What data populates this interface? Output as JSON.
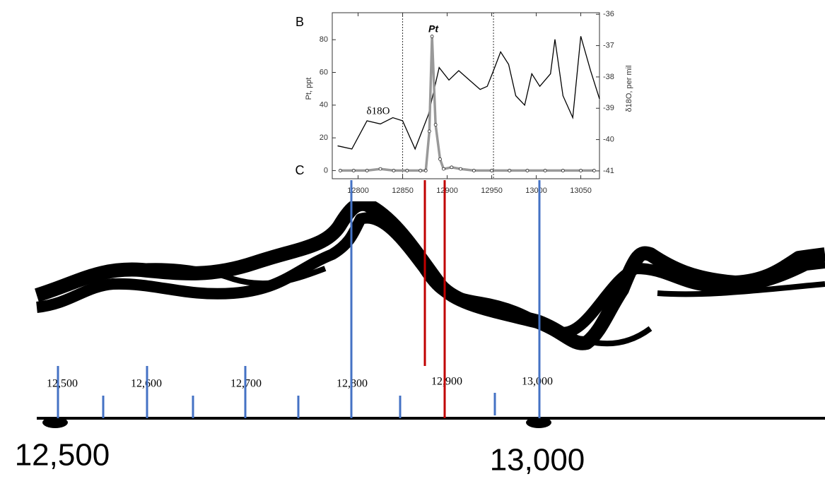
{
  "chart_data": {
    "type": "line",
    "panel_labels": [
      "B",
      "C"
    ],
    "annotations": [
      "Pt",
      "δ18O"
    ],
    "ylabel": "Pt, ppt",
    "y2label": "δ18O, per mil",
    "xlim": [
      12771,
      13071
    ],
    "xticks": [
      12800,
      12850,
      12900,
      12950,
      13000,
      13050
    ],
    "ylim": [
      -5,
      96.5
    ],
    "yticks": [
      0,
      20,
      40,
      60,
      80
    ],
    "y2lim": [
      -41.25,
      -35.95
    ],
    "y2ticks": [
      -36,
      -37,
      -38,
      -39,
      -40,
      -41
    ],
    "reference_lines": [
      12850,
      12952
    ],
    "series": [
      {
        "name": "δ18O",
        "color": "#000000",
        "axis": "y2",
        "x": [
          12777,
          12793,
          12810,
          12825,
          12839,
          12850,
          12864,
          12879,
          12891,
          12902,
          12913,
          12925,
          12937,
          12945,
          12952,
          12960,
          12969,
          12977,
          12987,
          12995,
          13004,
          13016,
          13021,
          13030,
          13041,
          13050,
          13061,
          13071
        ],
        "values": [
          -40.2,
          -40.3,
          -39.4,
          -39.5,
          -39.3,
          -39.4,
          -40.3,
          -39.2,
          -37.7,
          -38.1,
          -37.8,
          -38.1,
          -38.4,
          -38.3,
          -37.8,
          -37.2,
          -37.6,
          -38.6,
          -38.9,
          -37.9,
          -38.3,
          -37.9,
          -36.8,
          -38.6,
          -39.3,
          -36.7,
          -37.8,
          -38.7
        ]
      },
      {
        "name": "Pt",
        "color": "#999999",
        "x": [
          12780,
          12795,
          12810,
          12825,
          12840,
          12855,
          12870,
          12876,
          12880,
          12883,
          12887,
          12892,
          12896,
          12905,
          12915,
          12930,
          12950,
          12970,
          12990,
          13010,
          13030,
          13050,
          13065
        ],
        "values": [
          0,
          0,
          0,
          1,
          0,
          0,
          0,
          0,
          24,
          82,
          28,
          7,
          1,
          2,
          1,
          0,
          0,
          0,
          0,
          0,
          0,
          0,
          0
        ]
      }
    ]
  },
  "timeline": {
    "tick_labels": [
      "12,500",
      "12,600",
      "12,700",
      "12,800",
      "12,900",
      "13,000"
    ],
    "big_labels": [
      "12,500",
      "13,000"
    ]
  }
}
